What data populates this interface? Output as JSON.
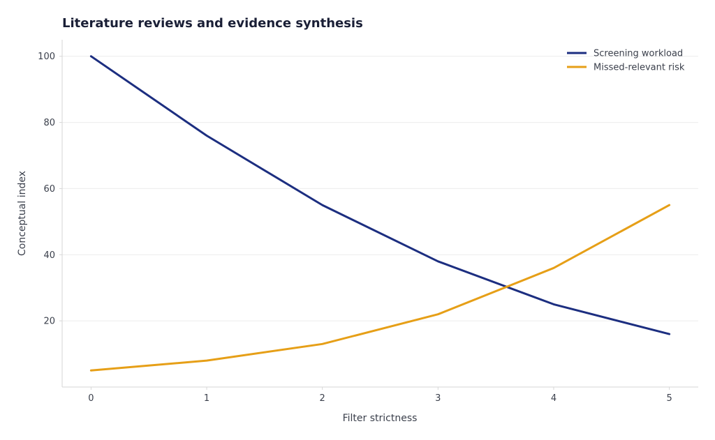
{
  "chart_data": {
    "type": "line",
    "title": "Literature reviews and evidence synthesis",
    "xlabel": "Filter strictness",
    "ylabel": "Conceptual index",
    "x": [
      0,
      1,
      2,
      3,
      4,
      5
    ],
    "xlim": [
      -0.25,
      5.25
    ],
    "ylim": [
      0,
      105
    ],
    "xticks": [
      "0",
      "1",
      "2",
      "3",
      "4",
      "5"
    ],
    "yticks": [
      "20",
      "40",
      "60",
      "80",
      "100"
    ],
    "grid": "horizontal",
    "legend_position": "top-right",
    "series": [
      {
        "name": "Screening workload",
        "color": "#1c2e80",
        "values": [
          100,
          76,
          55,
          38,
          25,
          16
        ]
      },
      {
        "name": "Missed-relevant risk",
        "color": "#e69f17",
        "values": [
          5,
          8,
          13,
          22,
          36,
          55
        ]
      }
    ]
  }
}
